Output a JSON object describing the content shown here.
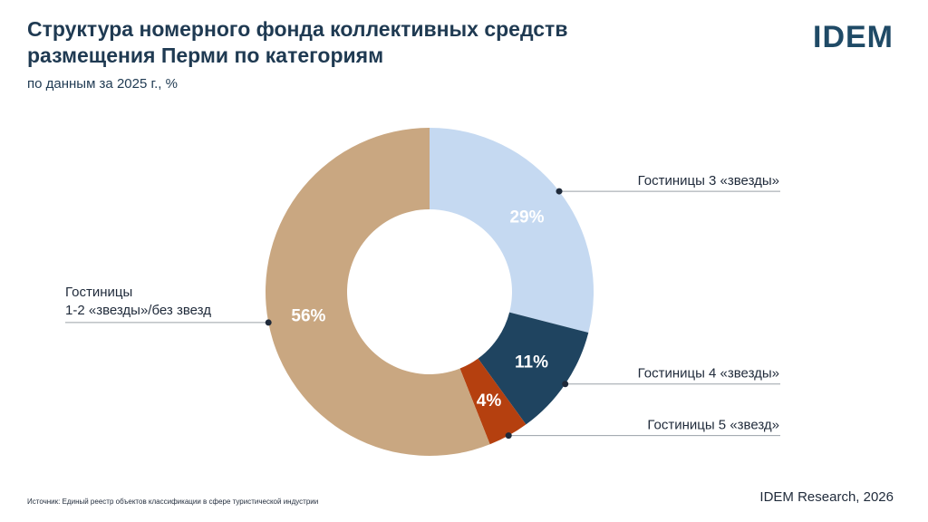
{
  "header": {
    "title": "Структура номерного фонда коллективных средств размещения Перми по категориям",
    "subtitle": "по данным за 2025 г., %",
    "logo": "IDEM"
  },
  "footer": {
    "source": "Источник: Единый реестр объектов классификации в сфере туристической индустрии",
    "credit": "IDEM Research, 2026"
  },
  "chart_data": {
    "type": "pie",
    "variant": "donut",
    "title": "Структура номерного фонда коллективных средств размещения Перми по категориям",
    "subtitle": "по данным за 2025 г., %",
    "unit": "%",
    "labels": [
      "Гостиницы 3 «звезды»",
      "Гостиницы 4 «звезды»",
      "Гостиницы 5 «звезд»",
      "Гостиницы 1-2 «звезды»/без звезд"
    ],
    "values": [
      29,
      11,
      4,
      56
    ],
    "value_labels": [
      "29%",
      "11%",
      "4%",
      "56%"
    ],
    "colors": [
      "#c5d9f1",
      "#1f4460",
      "#b5400f",
      "#c9a781"
    ],
    "legend": "callouts"
  }
}
